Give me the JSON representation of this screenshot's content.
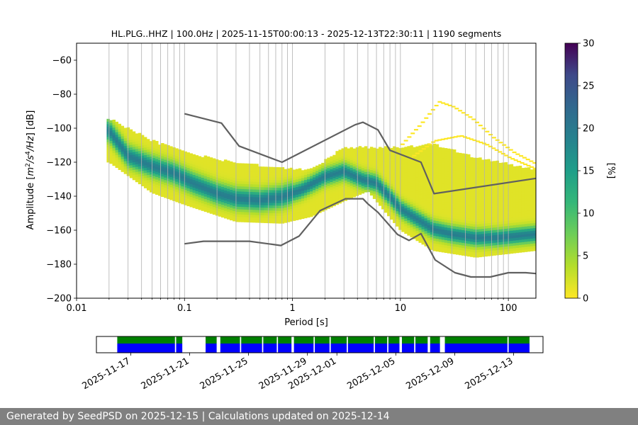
{
  "chart_data": [
    {
      "type": "heatmap",
      "title": "HL.PLG..HHZ | 100.0Hz | 2025-11-15T00:00:13 - 2025-12-13T22:30:11 | 1190 segments",
      "xlabel": "Period [s]",
      "ylabel_parts": [
        "Amplitude [",
        "m",
        "2",
        "/",
        "s",
        "4",
        "/",
        "Hz",
        "] [dB]"
      ],
      "x_scale": "log",
      "xlim": [
        0.01,
        180
      ],
      "ylim": [
        -200,
        -50
      ],
      "x_ticks": [
        0.01,
        0.1,
        1,
        10,
        100
      ],
      "x_tick_labels": [
        "0.01",
        "0.1",
        "1",
        "10",
        "100"
      ],
      "y_ticks": [
        -200,
        -180,
        -160,
        -140,
        -120,
        -100,
        -80,
        -60
      ],
      "y_tick_labels": [
        "−200",
        "−180",
        "−160",
        "−140",
        "−120",
        "−100",
        "−80",
        "−60"
      ],
      "grid": "x-minor-and-major",
      "colorbar": {
        "label": "[%]",
        "range": [
          0,
          30
        ],
        "ticks": [
          0,
          5,
          10,
          15,
          20,
          25,
          30
        ],
        "tick_labels": [
          "0",
          "5",
          "10",
          "15",
          "20",
          "25",
          "30"
        ],
        "colormap": "viridis_r"
      },
      "psd_mode": {
        "period": [
          0.02,
          0.03,
          0.05,
          0.08,
          0.12,
          0.2,
          0.3,
          0.5,
          0.8,
          1.2,
          2.0,
          3.0,
          4.5,
          6.0,
          8.0,
          10,
          15,
          20,
          30,
          50,
          80,
          120,
          180
        ],
        "db": [
          -102,
          -117,
          -123,
          -127,
          -133,
          -139,
          -142,
          -143,
          -141,
          -137,
          -129,
          -126,
          -131,
          -133,
          -141,
          -148,
          -155,
          -160,
          -163,
          -165,
          -165,
          -164,
          -163
        ]
      },
      "spread_db": {
        "period": [
          0.02,
          0.05,
          0.1,
          0.3,
          0.8,
          1.5,
          3.0,
          5.0,
          10,
          20,
          50,
          180
        ],
        "upper": [
          -95,
          -108,
          -115,
          -121,
          -124,
          -125,
          -112,
          -112,
          -112,
          -110,
          -118,
          -125
        ],
        "lower": [
          -120,
          -138,
          -145,
          -155,
          -156,
          -152,
          -143,
          -137,
          -160,
          -172,
          -176,
          -172
        ]
      },
      "sparse_upper_arcs": [
        {
          "period": [
            10,
            15,
            22,
            30,
            45,
            70,
            110,
            180
          ],
          "db": [
            -110,
            -98,
            -85,
            -88,
            -95,
            -106,
            -115,
            -122
          ]
        },
        {
          "period": [
            12,
            20,
            35,
            60,
            100,
            180
          ],
          "db": [
            -118,
            -108,
            -105,
            -110,
            -118,
            -125
          ]
        }
      ],
      "series": [
        {
          "name": "",
          "period": [
            0.1,
            0.22,
            0.32,
            0.8,
            3.8,
            4.5,
            6.2,
            8.0,
            15.5,
            20.5,
            180
          ],
          "db": [
            -91.5,
            -97,
            -110.5,
            -120,
            -98,
            -96.5,
            -101,
            -113,
            -120,
            -138.5,
            -129.5
          ]
        },
        {
          "name": "",
          "period": [
            0.1,
            0.15,
            0.4,
            0.78,
            1.15,
            1.8,
            3.1,
            4.5,
            5.0,
            6.2,
            9.4,
            12.0,
            15.5,
            21.0,
            32.0,
            45.0,
            68.0,
            100.0,
            145.0,
            180.0
          ],
          "db": [
            -168,
            -166.5,
            -166.5,
            -169,
            -163.5,
            -148.5,
            -141.5,
            -141.5,
            -144.5,
            -149.5,
            -162.5,
            -166,
            -162,
            -177.5,
            -185,
            -187.5,
            -187.5,
            -185,
            -185,
            -185.5
          ]
        }
      ]
    },
    {
      "type": "timeline",
      "x_tick_labels": [
        "2025-11-17",
        "2025-11-21",
        "2025-11-25",
        "2025-11-29",
        "2025-12-01",
        "2025-12-05",
        "2025-12-09",
        "2025-12-13"
      ],
      "x_ticks": [
        "2025-11-17",
        "2025-11-21",
        "2025-11-25",
        "2025-11-29",
        "2025-12-01",
        "2025-12-05",
        "2025-12-09",
        "2025-12-13"
      ],
      "xlim": [
        "2025-11-14T16:00",
        "2025-12-15T00:00"
      ],
      "colors": {
        "top": "#008000",
        "bottom": "#0000ff"
      },
      "segments": [
        [
          "2025-11-16T02:00",
          "2025-11-20T00:00"
        ],
        [
          "2025-11-20T02:00",
          "2025-11-20T12:00"
        ],
        [
          "2025-11-22T02:00",
          "2025-11-22T20:00"
        ],
        [
          "2025-11-23T02:00",
          "2025-11-24T10:00"
        ],
        [
          "2025-11-24T12:00",
          "2025-11-25T22:00"
        ],
        [
          "2025-11-26T00:00",
          "2025-11-26T22:00"
        ],
        [
          "2025-11-27T00:00",
          "2025-11-27T22:00"
        ],
        [
          "2025-11-28T02:00",
          "2025-11-29T10:00"
        ],
        [
          "2025-11-29T12:00",
          "2025-11-30T12:00"
        ],
        [
          "2025-11-30T14:00",
          "2025-12-01T16:00"
        ],
        [
          "2025-12-01T18:00",
          "2025-12-03T12:00"
        ],
        [
          "2025-12-03T14:00",
          "2025-12-04T10:00"
        ],
        [
          "2025-12-04T12:00",
          "2025-12-05T06:00"
        ],
        [
          "2025-12-05T10:00",
          "2025-12-06T06:00"
        ],
        [
          "2025-12-06T08:00",
          "2025-12-07T04:00"
        ],
        [
          "2025-12-07T08:00",
          "2025-12-08T00:00"
        ],
        [
          "2025-12-08T08:00",
          "2025-12-12T14:00"
        ],
        [
          "2025-12-12T16:00",
          "2025-12-14T02:00"
        ]
      ]
    }
  ],
  "footer": "Generated by SeedPSD on 2025-12-15 | Calculations updated on 2025-12-14"
}
